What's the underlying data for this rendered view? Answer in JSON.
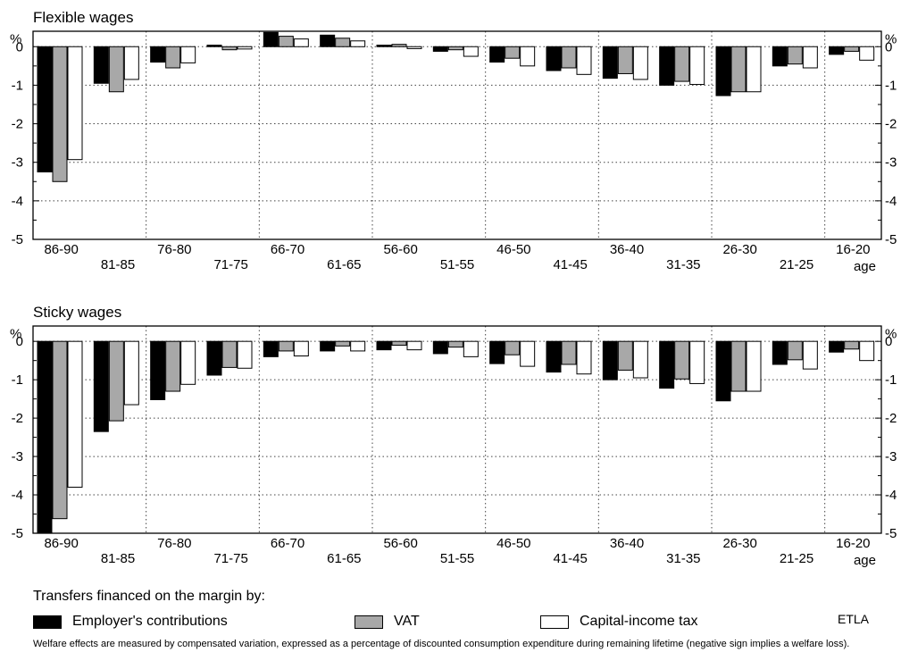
{
  "chart_data": [
    {
      "type": "bar",
      "title": "Flexible wages",
      "ylabel": "%",
      "xlabel": "age",
      "ylim": [
        -5,
        0.4
      ],
      "yticks": [
        "0",
        "-1",
        "-2",
        "-3",
        "-4",
        "-5"
      ],
      "grid": true,
      "categories": [
        "86-90",
        "81-85",
        "76-80",
        "71-75",
        "66-70",
        "61-65",
        "56-60",
        "51-55",
        "46-50",
        "41-45",
        "36-40",
        "31-35",
        "26-30",
        "21-25",
        "16-20"
      ],
      "series": [
        {
          "name": "Employer's contributions",
          "values": [
            -3.25,
            -0.95,
            -0.4,
            0.04,
            0.37,
            0.3,
            0.04,
            -0.12,
            -0.4,
            -0.62,
            -0.82,
            -1.0,
            -1.27,
            -0.5,
            -0.2
          ]
        },
        {
          "name": "VAT",
          "values": [
            -3.5,
            -1.17,
            -0.55,
            -0.08,
            0.27,
            0.22,
            0.06,
            -0.08,
            -0.3,
            -0.55,
            -0.7,
            -0.9,
            -1.17,
            -0.45,
            -0.12
          ]
        },
        {
          "name": "Capital-income tax",
          "values": [
            -2.93,
            -0.85,
            -0.42,
            -0.06,
            0.2,
            0.15,
            -0.05,
            -0.25,
            -0.5,
            -0.72,
            -0.85,
            -0.98,
            -1.17,
            -0.55,
            -0.35
          ]
        }
      ]
    },
    {
      "type": "bar",
      "title": "Sticky wages",
      "ylabel": "%",
      "xlabel": "age",
      "ylim": [
        -5,
        0.4
      ],
      "yticks": [
        "0",
        "-1",
        "-2",
        "-3",
        "-4",
        "-5"
      ],
      "grid": true,
      "categories": [
        "86-90",
        "81-85",
        "76-80",
        "71-75",
        "66-70",
        "61-65",
        "56-60",
        "51-55",
        "46-50",
        "41-45",
        "36-40",
        "31-35",
        "26-30",
        "21-25",
        "16-20"
      ],
      "series": [
        {
          "name": "Employer's contributions",
          "values": [
            -5.0,
            -2.35,
            -1.52,
            -0.88,
            -0.4,
            -0.25,
            -0.22,
            -0.32,
            -0.58,
            -0.8,
            -1.0,
            -1.22,
            -1.55,
            -0.6,
            -0.28
          ]
        },
        {
          "name": "VAT",
          "values": [
            -4.62,
            -2.07,
            -1.3,
            -0.68,
            -0.25,
            -0.12,
            -0.1,
            -0.15,
            -0.35,
            -0.6,
            -0.75,
            -0.98,
            -1.3,
            -0.48,
            -0.2
          ]
        },
        {
          "name": "Capital-income tax",
          "values": [
            -3.8,
            -1.65,
            -1.12,
            -0.7,
            -0.38,
            -0.25,
            -0.22,
            -0.4,
            -0.65,
            -0.85,
            -0.95,
            -1.1,
            -1.3,
            -0.72,
            -0.5
          ]
        }
      ]
    }
  ],
  "legend": {
    "title": "Transfers financed on the margin by:",
    "items": [
      {
        "label": "Employer's contributions",
        "color": "#000000"
      },
      {
        "label": "VAT",
        "color": "#a8a8a8"
      },
      {
        "label": "Capital-income tax",
        "color": "#ffffff"
      }
    ]
  },
  "credit": "ETLA",
  "footnote": "Welfare effects are measured by compensated variation, expressed as a percentage of discounted consumption expenditure during remaining lifetime (negative sign implies a welfare loss)."
}
